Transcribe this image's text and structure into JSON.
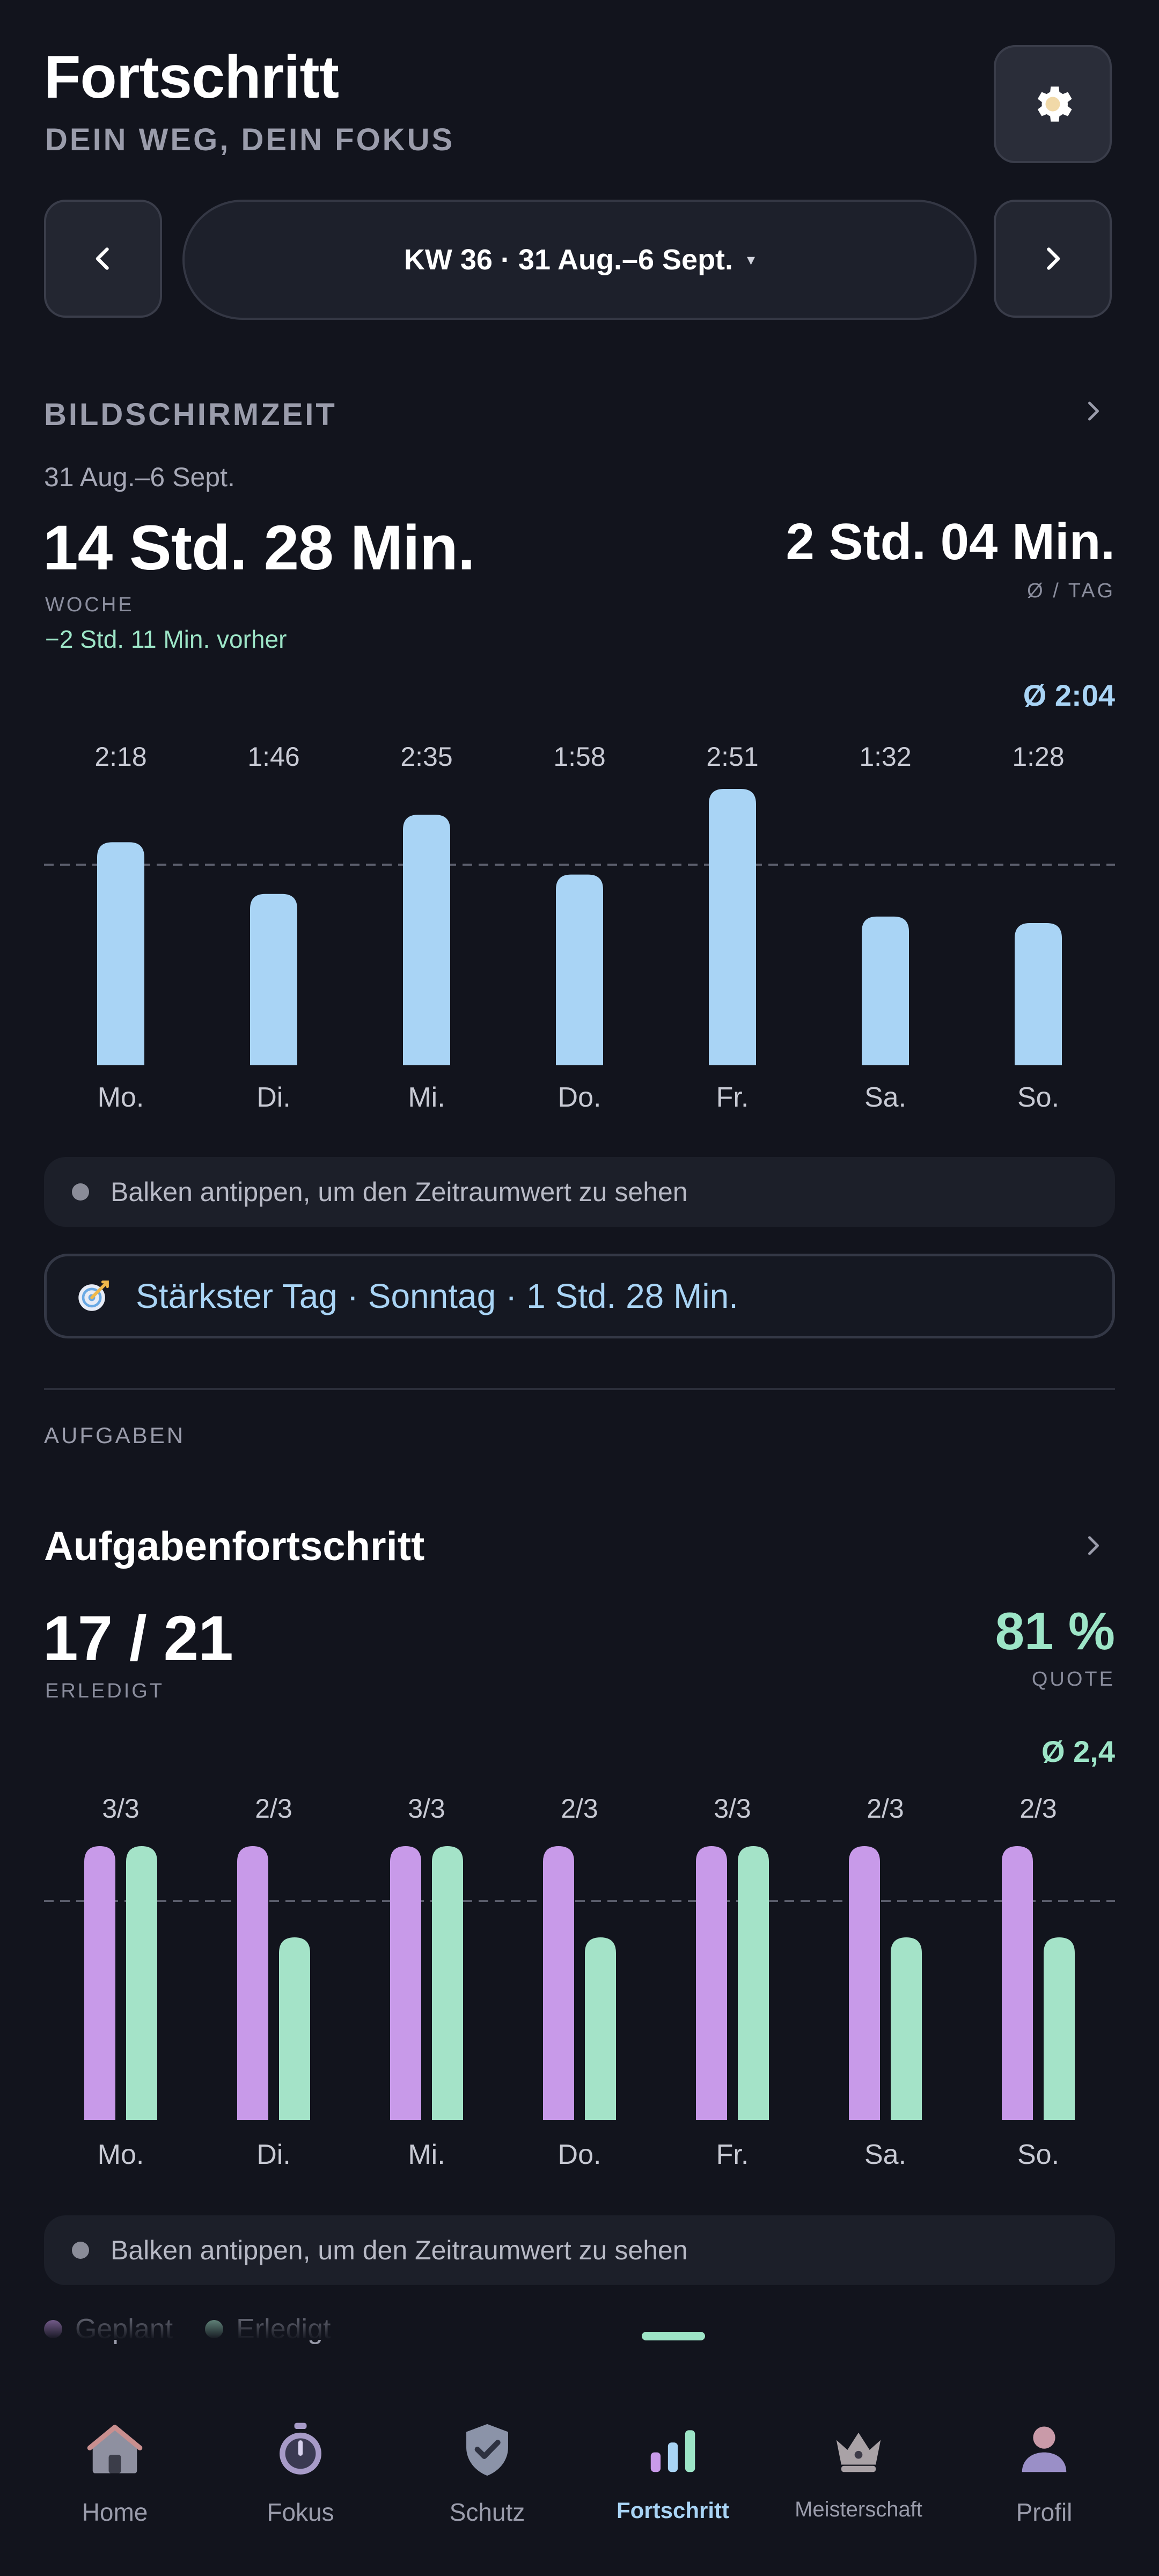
{
  "header": {
    "title": "Fortschritt",
    "subtitle": "DEIN WEG, DEIN FOKUS",
    "icons": {
      "settings": "gear-icon",
      "prev": "chevron-left-icon",
      "next": "chevron-right-icon"
    }
  },
  "week_selector": {
    "label": "KW 36 · 31 Aug.–6 Sept.",
    "caret": "▾"
  },
  "screen_time": {
    "section_label": "BILDSCHIRMZEIT",
    "range": "31 Aug.–6 Sept.",
    "total": "14 Std. 28 Min.",
    "total_caption": "WOCHE",
    "change": "−2 Std. 11 Min. vorher",
    "per_day": "2 Std. 04 Min.",
    "per_day_caption": "Ø / TAG",
    "average_label": "Ø 2:04",
    "hint": "Balken antippen, um den Zeitraumwert zu sehen",
    "strongest_day": "Stärkster Tag · Sonntag · 1 Std. 28 Min.",
    "colors": {
      "bar": "#a9d4f5",
      "change": "#9de5c7"
    }
  },
  "tasks": {
    "section_label": "AUFGABEN",
    "title": "Aufgabenfortschritt",
    "done": "17 / 21",
    "done_caption": "ERLEDIGT",
    "rate": "81 %",
    "rate_caption": "QUOTE",
    "average_label": "Ø 2,4",
    "hint": "Balken antippen, um den Zeitraumwert zu sehen",
    "legend": [
      {
        "label": "Geplant",
        "color": "#c89ae9"
      },
      {
        "label": "Erledigt",
        "color": "#a4e3c8"
      }
    ]
  },
  "chart_data": [
    {
      "type": "bar",
      "categories": [
        "Mo.",
        "Di.",
        "Mi.",
        "Do.",
        "Fr.",
        "Sa.",
        "So."
      ],
      "values": [
        138,
        106,
        155,
        118,
        171,
        92,
        88
      ],
      "data_labels": [
        "2:18",
        "1:46",
        "2:35",
        "1:58",
        "2:51",
        "1:32",
        "1:28"
      ],
      "average": 124,
      "ylim": [
        0,
        171
      ],
      "grid": false,
      "colors": [
        "#a9d4f5"
      ]
    },
    {
      "type": "bar",
      "categories": [
        "Mo.",
        "Di.",
        "Mi.",
        "Do.",
        "Fr.",
        "Sa.",
        "So."
      ],
      "series": [
        {
          "name": "Geplant",
          "values": [
            3,
            3,
            3,
            3,
            3,
            3,
            3
          ]
        },
        {
          "name": "Erledigt",
          "values": [
            3,
            2,
            3,
            2,
            3,
            2,
            2
          ]
        }
      ],
      "data_labels": [
        "3/3",
        "2/3",
        "3/3",
        "2/3",
        "3/3",
        "2/3",
        "2/3"
      ],
      "average": 2.4,
      "ylim": [
        0,
        3
      ],
      "grid": false,
      "colors": [
        "#c89ae9",
        "#a4e3c8"
      ]
    }
  ],
  "nav": {
    "items": [
      {
        "label": "Home",
        "icon": "home-icon"
      },
      {
        "label": "Fokus",
        "icon": "stopwatch-icon"
      },
      {
        "label": "Schutz",
        "icon": "shield-check-icon"
      },
      {
        "label": "Fortschritt",
        "icon": "bar-chart-icon"
      },
      {
        "label": "Meisterschaft",
        "icon": "crown-icon"
      },
      {
        "label": "Profil",
        "icon": "person-icon"
      }
    ],
    "active": "Fortschritt"
  }
}
